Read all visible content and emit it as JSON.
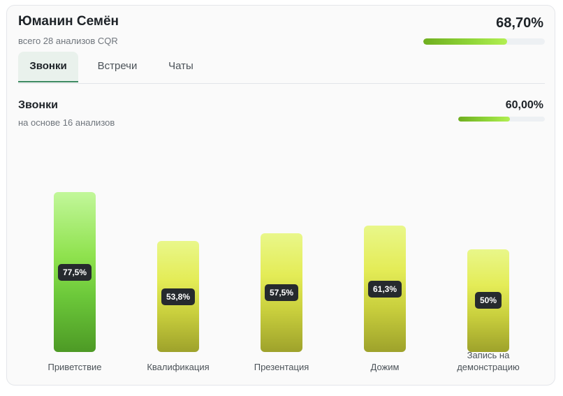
{
  "header": {
    "name": "Юманин Семён",
    "subtitle": "всего 28 анализов CQR",
    "total_percent_label": "68,70%",
    "total_percent": 68.7
  },
  "tabs": [
    {
      "label": "Звонки",
      "active": true
    },
    {
      "label": "Встречи",
      "active": false
    },
    {
      "label": "Чаты",
      "active": false
    }
  ],
  "section": {
    "title": "Звонки",
    "subtitle": "на основе 16 анализов",
    "percent_label": "60,00%",
    "percent": 60.0
  },
  "colors": {
    "high": "#7ed63c",
    "medium": "#b9cc3a",
    "badge": "#262a2e",
    "tab_active_border": "#3e8a62"
  },
  "chart_data": {
    "type": "bar",
    "categories": [
      "Приветствие",
      "Квалификация",
      "Презентация",
      "Дожим",
      "Запись на демонстрацию"
    ],
    "values": [
      77.5,
      53.8,
      57.5,
      61.3,
      50
    ],
    "value_labels": [
      "77,5%",
      "53,8%",
      "57,5%",
      "61,3%",
      "50%"
    ],
    "ylim": [
      0,
      100
    ],
    "grid": false
  }
}
